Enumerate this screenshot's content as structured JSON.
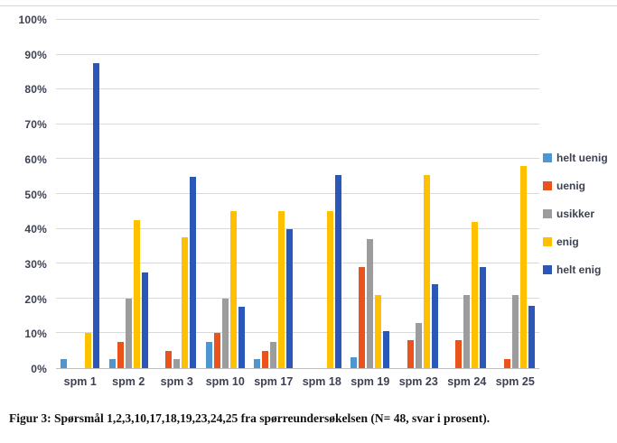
{
  "caption": "Figur 3: Spørsmål 1,2,3,10,17,18,19,23,24,25 fra spørreundersøkelsen (N= 48, svar i prosent).",
  "chart_data": {
    "type": "bar",
    "title": "",
    "categories": [
      "spm 1",
      "spm 2",
      "spm 3",
      "spm 10",
      "spm 17",
      "spm 18",
      "spm 19",
      "spm 23",
      "spm 24",
      "spm 25"
    ],
    "series": [
      {
        "name": "helt uenig",
        "color": "#4e96d2",
        "values": [
          2.5,
          2.5,
          0,
          7.5,
          2.5,
          0,
          3,
          0,
          0,
          0
        ]
      },
      {
        "name": "uenig",
        "color": "#e8541c",
        "values": [
          0,
          7.5,
          5,
          10,
          5,
          0,
          29,
          8,
          8,
          2.5
        ]
      },
      {
        "name": "usikker",
        "color": "#9c9c9c",
        "values": [
          0,
          20,
          2.5,
          20,
          7.5,
          0,
          37,
          13,
          21,
          21
        ]
      },
      {
        "name": "enig",
        "color": "#ffc000",
        "values": [
          10,
          42.5,
          37.5,
          45,
          45,
          45,
          21,
          55.5,
          42,
          58
        ]
      },
      {
        "name": "helt enig",
        "color": "#2b57b8",
        "values": [
          87.5,
          27.5,
          55,
          17.5,
          40,
          55.5,
          10.5,
          24,
          29,
          18
        ]
      }
    ],
    "xlabel": "",
    "ylabel": "",
    "ylim": [
      0,
      100
    ],
    "ytick_step": 10,
    "ytick_labels": [
      "0%",
      "10%",
      "20%",
      "30%",
      "40%",
      "50%",
      "60%",
      "70%",
      "80%",
      "90%",
      "100%"
    ],
    "grid": true,
    "legend_position": "right"
  },
  "colors": {
    "gridline": "#d9d9d9",
    "axis_line": "#bfbfbf",
    "tick_label": "#3d4152",
    "background": "#ffffff",
    "top_border": "#d8d8d8"
  }
}
